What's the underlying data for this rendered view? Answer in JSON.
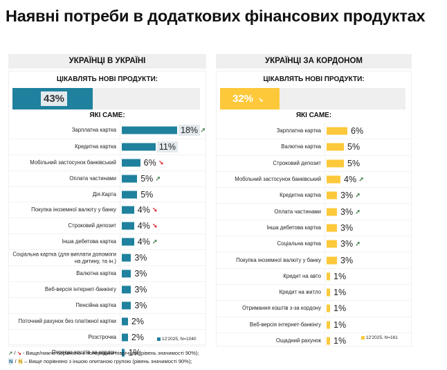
{
  "title": "Наявні потреби в додаткових фінансових продуктах",
  "colors": {
    "ukraine": "#1f819e",
    "abroad": "#fdc93b",
    "up": "#3a7d44",
    "down": "#d42020",
    "highlight_ukraine": "#e3eaee",
    "highlight_abroad": "#fdf2d0"
  },
  "chart_data": [
    {
      "type": "bar",
      "orientation": "horizontal",
      "title": "УКРАЇНЦІ В УКРАЇНІ",
      "interest_label": "ЦІКАВЛЯТЬ НОВІ ПРОДУКТИ:",
      "interest_value": 43,
      "interest_value_label": "43%",
      "interest_trend": "",
      "subtitle": "ЯКІ САМЕ:",
      "legend": "12'2025, N=1040",
      "unit": "%",
      "categories": [
        "Зарплатна картка",
        "Кредитна картка",
        "Мобільний застосунок банківський",
        "Оплата частинами",
        "Дія.Карта",
        "Покупка іноземної валюту у банку",
        "Строковий депозит",
        "Інша дебетова картка",
        "Соціальна картка (для виплати допомоги на дитину, та ін.)",
        "Валютна картка",
        "Веб-версія інтернет-банкінгу",
        "Пенсійна картка",
        "Поточний рахунок без платіжної картки",
        "Розстрочка",
        "Переказ коштів за кордон"
      ],
      "values": [
        18,
        11,
        6,
        5,
        5,
        4,
        4,
        4,
        3,
        3,
        3,
        3,
        2,
        2,
        1
      ],
      "value_labels": [
        "18%",
        "11%",
        "6%",
        "5%",
        "5%",
        "4%",
        "4%",
        "4%",
        "3%",
        "3%",
        "3%",
        "3%",
        "2%",
        "2%",
        "1%"
      ],
      "trends": [
        "up",
        "",
        "down",
        "up",
        "",
        "down",
        "down",
        "up",
        "",
        "",
        "",
        "",
        "",
        "",
        ""
      ],
      "higher_than_other_group": [
        true,
        true,
        false,
        false,
        false,
        false,
        false,
        false,
        false,
        false,
        false,
        false,
        false,
        false,
        false
      ],
      "xlim": [
        0,
        20
      ]
    },
    {
      "type": "bar",
      "orientation": "horizontal",
      "title": "УКРАЇНЦІ ЗА КОРДОНОМ",
      "interest_label": "ЦІКАВЛЯТЬ НОВІ ПРОДУКТИ:",
      "interest_value": 32,
      "interest_value_label": "32%",
      "interest_trend": "down",
      "subtitle": "ЯКІ САМЕ:",
      "legend": "12'2025, N=161",
      "unit": "%",
      "categories": [
        "Зарплатна картка",
        "Валютна картка",
        "Строковий депозит",
        "Мобільний застосунок банківський",
        "Кредитна картка",
        "Оплата частинами",
        "Інша дебетова картка",
        "Соціальна картка",
        "Покупка іноземної валюту у банку",
        "Кредит на авто",
        "Кредит на житло",
        "Отримання коштів з-за кордону",
        "Веб-версія інтернет-банкінгу",
        "Ощадний рахунок"
      ],
      "values": [
        6,
        5,
        5,
        4,
        3,
        3,
        3,
        3,
        3,
        1,
        1,
        1,
        1,
        1
      ],
      "value_labels": [
        "6%",
        "5%",
        "5%",
        "4%",
        "3%",
        "3%",
        "3%",
        "3%",
        "3%",
        "1%",
        "1%",
        "1%",
        "1%",
        "1%"
      ],
      "trends": [
        "",
        "",
        "",
        "up",
        "up",
        "up",
        "",
        "up",
        "",
        "",
        "",
        "",
        "",
        ""
      ],
      "higher_than_other_group": [
        false,
        false,
        false,
        false,
        false,
        false,
        false,
        false,
        false,
        false,
        false,
        false,
        false,
        false
      ],
      "xlim": [
        0,
        20
      ]
    }
  ],
  "footnotes": {
    "line1_up": "↗",
    "line1_sep": " / ",
    "line1_down": "↘",
    "line1_text": " - Вище/нижче порівняно з попереднім півріччям (рівень значимості 90%);",
    "line2_n1": "N",
    "line2_sep": " / ",
    "line2_n2": "N",
    "line2_text": " – Вище порівняно з іншою опитаною групою (рівень значимості 90%);"
  },
  "arrow_glyphs": {
    "up": "➚",
    "down": "➘"
  }
}
